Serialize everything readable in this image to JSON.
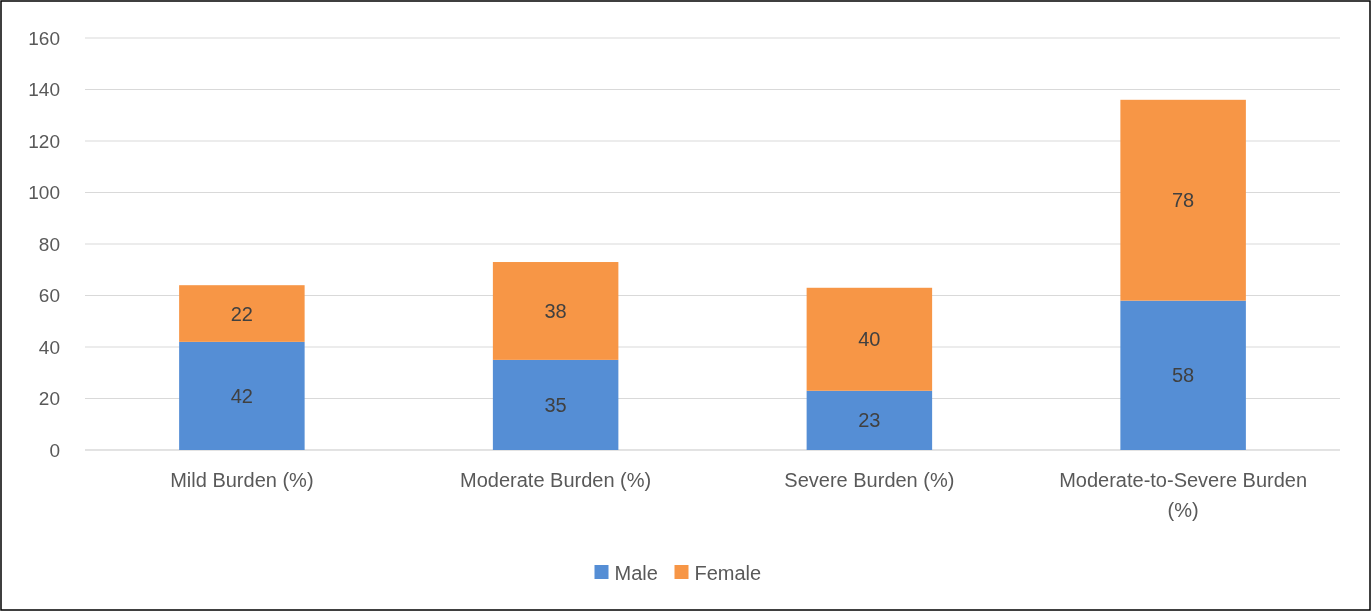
{
  "chart_data": {
    "type": "bar",
    "stacked": true,
    "categories": [
      "Mild Burden (%)",
      "Moderate Burden (%)",
      "Severe Burden (%)",
      "Moderate-to-Severe Burden (%)"
    ],
    "series": [
      {
        "name": "Male",
        "color": "#558ed5",
        "values": [
          42,
          35,
          23,
          58
        ]
      },
      {
        "name": "Female",
        "color": "#f79646",
        "values": [
          22,
          38,
          40,
          78
        ]
      }
    ],
    "ylim": [
      0,
      160
    ],
    "yticks": [
      0,
      20,
      40,
      60,
      80,
      100,
      120,
      140,
      160
    ],
    "grid": "y",
    "legend": "bottom",
    "data_labels": true
  }
}
